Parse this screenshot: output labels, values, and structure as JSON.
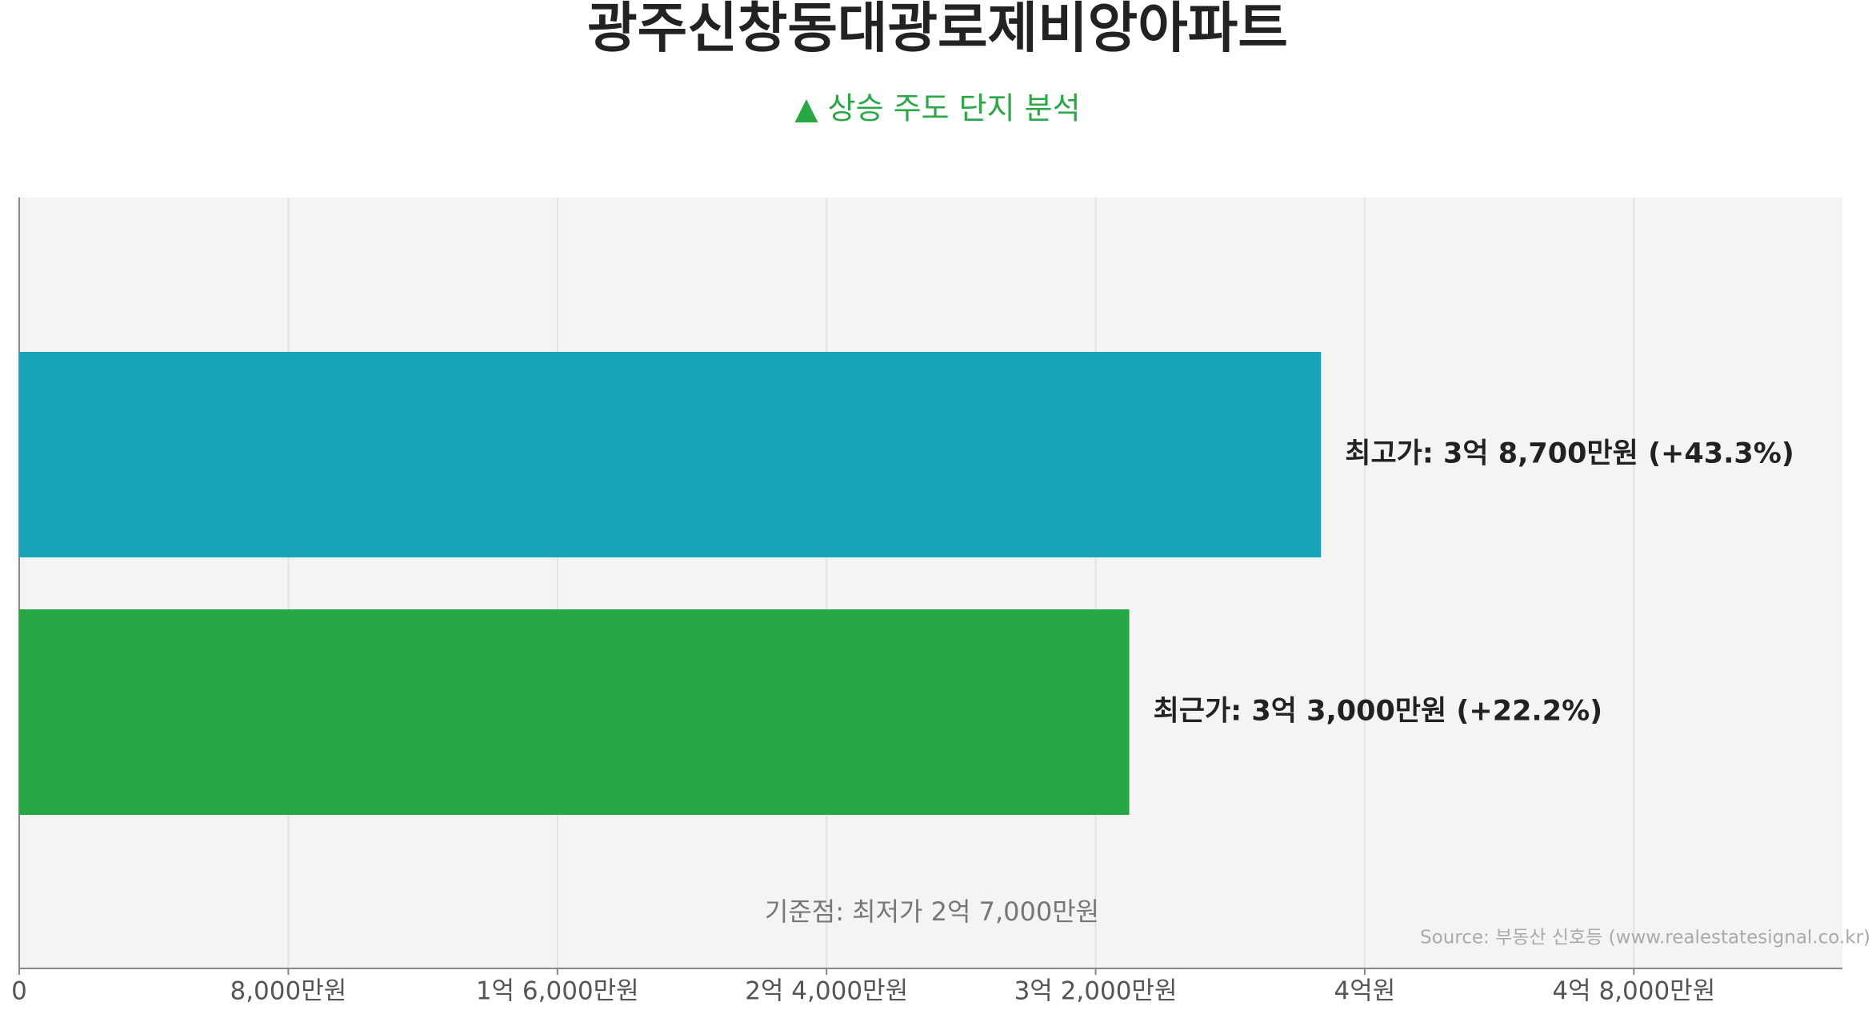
{
  "chart_data": {
    "type": "barh",
    "title": "광주신창동대광로제비앙아파트",
    "subtitle": "▲ 상승 주도 단지 분석",
    "series": [
      {
        "values": [
          38700,
          33000
        ],
        "value_labels": [
          "최고가: 3억 8,700만원 (+43.3%)",
          "최근가: 3억 3,000만원 (+22.2%)"
        ],
        "colors": [
          "#17a2b8",
          "#28a745"
        ]
      }
    ],
    "xlim": [
      0,
      54200
    ],
    "xticks": [
      0,
      {
        "value": 8000,
        "label": "8,000만원"
      },
      {
        "value": 16000,
        "label": "1억 6,000만원"
      },
      {
        "value": 24000,
        "label": "2억 4,000만원"
      },
      {
        "value": 32000,
        "label": "3억 2,000만원"
      },
      {
        "value": 40000,
        "label": "4억원"
      },
      {
        "value": 48000,
        "label": "4억 8,000만원"
      }
    ],
    "grid": true,
    "annotation": "기준점: 최저가 2억 7,000만원",
    "source": "Source: 부동산 신호등 (www.realestatesignal.co.kr)"
  }
}
